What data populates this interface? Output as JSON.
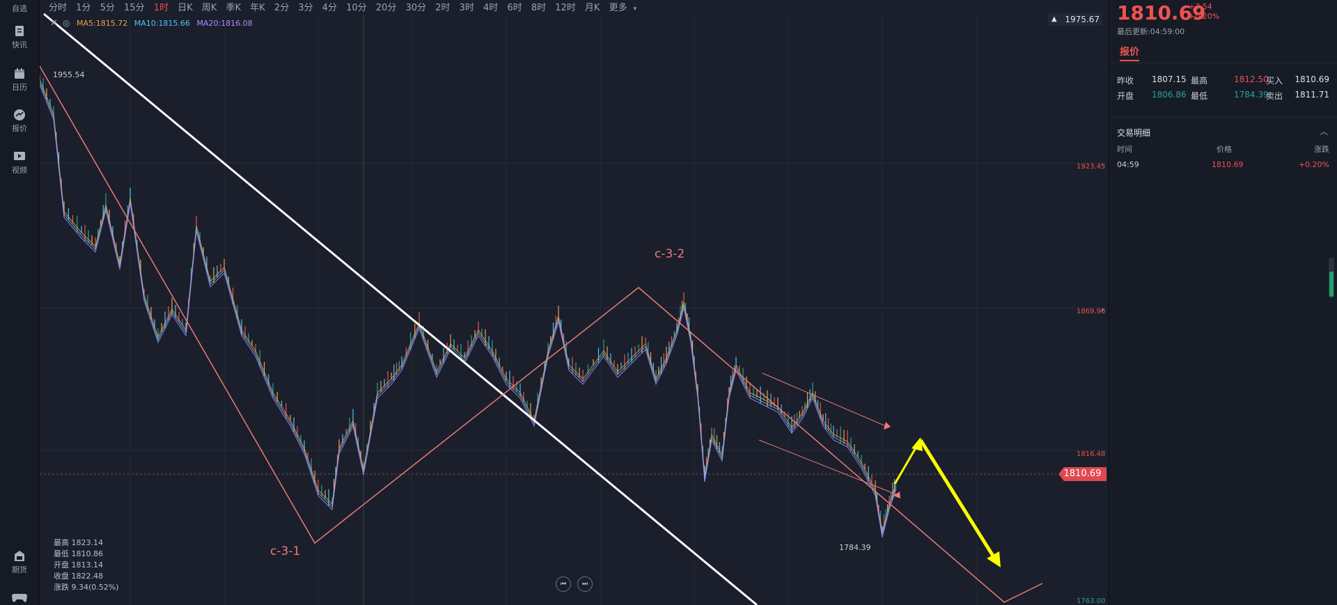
{
  "sidebar": {
    "items": [
      {
        "label": "自选",
        "icon": "star-icon"
      },
      {
        "label": "快讯",
        "icon": "news-icon"
      },
      {
        "label": "日历",
        "icon": "calendar-icon"
      },
      {
        "label": "报价",
        "icon": "quote-icon"
      },
      {
        "label": "视频",
        "icon": "video-icon"
      },
      {
        "label": "期货",
        "icon": "futures-icon"
      }
    ]
  },
  "toolbar": {
    "timeframes": [
      "分时",
      "1分",
      "5分",
      "15分",
      "1时",
      "日K",
      "周K",
      "季K",
      "年K",
      "2分",
      "3分",
      "4分",
      "10分",
      "20分",
      "30分",
      "2时",
      "3时",
      "4时",
      "6时",
      "8时",
      "12时",
      "月K"
    ],
    "active": "1时",
    "more": "更多"
  },
  "indicators": {
    "ma5": "MA5:1815.72",
    "ma10": "MA10:1815.66",
    "ma20": "MA20:1816.08"
  },
  "price_axis": {
    "top_label": "1975.67",
    "labels": [
      "1923.45",
      "1869.90",
      "1816.48",
      "1763.00"
    ],
    "current": "1810.69"
  },
  "chart_annotations": {
    "high_marker": "1955.54",
    "low_marker": "1784.39",
    "wave_label_1": "c-3-1",
    "wave_label_2": "c-3-2"
  },
  "ohlc_stats": {
    "high": "最高 1823.14",
    "low": "最低 1810.86",
    "open": "开盘 1813.14",
    "close": "收盘 1822.48",
    "change": "涨跌 9.34(0.52%)"
  },
  "colors": {
    "up": "#ef5350",
    "down": "#26a69a",
    "ma5": "#f0a050",
    "ma10": "#4fc3f7",
    "ma20": "#b388ff",
    "trend_white": "#ffffff",
    "trend_pink": "#f07a7a",
    "arrow_yellow": "#ffff00"
  },
  "quote_panel": {
    "last_price": "1810.69",
    "change_abs": "+3.54",
    "change_pct": "+0.20%",
    "last_update": "最后更新:04:59:00",
    "tab": "报价",
    "rows": [
      {
        "l1": "昨收",
        "v1": "1807.15",
        "l2": "最高",
        "v2": "1812.50",
        "l3": "买入",
        "v3": "1810.69"
      },
      {
        "l1": "开盘",
        "v1": "1806.86",
        "l2": "最低",
        "v2": "1784.39",
        "l3": "卖出",
        "v3": "1811.71"
      }
    ],
    "trade_detail": {
      "title": "交易明细",
      "headers": [
        "时间",
        "价格",
        "涨跌"
      ],
      "rows": [
        {
          "time": "04:59",
          "price": "1810.69",
          "chg": "+0.20%"
        }
      ]
    }
  }
}
